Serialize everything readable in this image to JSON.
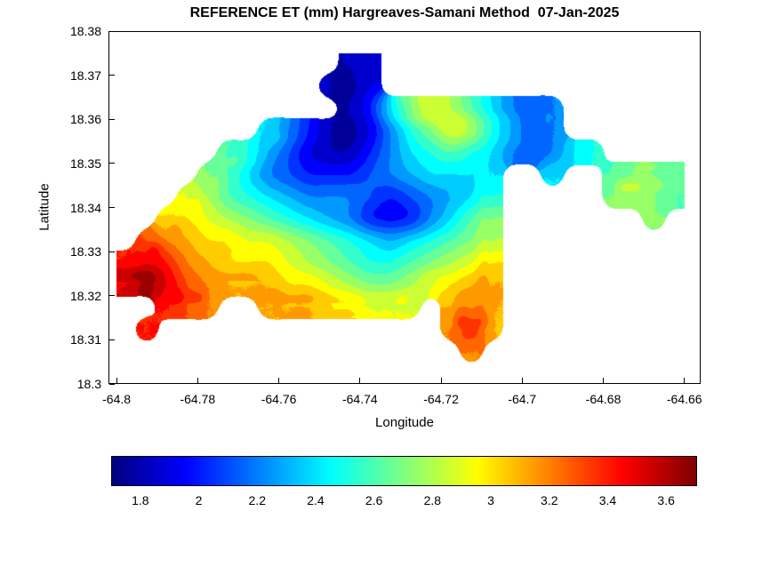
{
  "title": "REFERENCE ET (mm) Hargreaves-Samani Method  07-Jan-2025",
  "chart_data": {
    "type": "heatmap",
    "subtype": "filled-contour-map",
    "title": "REFERENCE ET (mm) Hargreaves-Samani Method  07-Jan-2025",
    "date": "07-Jan-2025",
    "method": "Hargreaves-Samani",
    "units": "mm",
    "xlabel": "Longitude",
    "ylabel": "Latitude",
    "xlim": [
      -64.802,
      -64.656
    ],
    "ylim": [
      18.3,
      18.38
    ],
    "x_ticks": {
      "values": [
        -64.8,
        -64.78,
        -64.76,
        -64.74,
        -64.72,
        -64.7,
        -64.68,
        -64.66
      ],
      "labels": [
        "-64.8",
        "-64.78",
        "-64.76",
        "-64.74",
        "-64.72",
        "-64.7",
        "-64.68",
        "-64.66"
      ]
    },
    "y_ticks": {
      "values": [
        18.3,
        18.31,
        18.32,
        18.33,
        18.34,
        18.35,
        18.36,
        18.37,
        18.38
      ],
      "labels": [
        "18.3",
        "18.31",
        "18.32",
        "18.33",
        "18.34",
        "18.35",
        "18.36",
        "18.37",
        "18.38"
      ]
    },
    "colormap": "jet",
    "value_range": [
      1.7,
      3.7
    ],
    "contour_interval": 0.1,
    "colorbar": {
      "orientation": "horizontal",
      "values": [
        1.8,
        2,
        2.2,
        2.4,
        2.6,
        2.8,
        3,
        3.2,
        3.4,
        3.6
      ],
      "labels": [
        "1.8",
        "2",
        "2.2",
        "2.4",
        "2.6",
        "2.8",
        "3",
        "3.2",
        "3.4",
        "3.6"
      ]
    },
    "grid": {
      "comment": "Reference ET (mm) sampled on lon/lat grid; null = water (outside island)",
      "lon_start": -64.7975,
      "lon_step": 0.005,
      "lat_start": 18.3725,
      "lat_step": -0.005,
      "values": [
        [
          null,
          null,
          null,
          null,
          null,
          null,
          null,
          null,
          null,
          null,
          null,
          1.8,
          1.9,
          null,
          null,
          null,
          null,
          null,
          null,
          null,
          null,
          null,
          null,
          null,
          null,
          null,
          null,
          null
        ],
        [
          null,
          null,
          null,
          null,
          null,
          null,
          null,
          null,
          null,
          null,
          1.8,
          1.75,
          1.9,
          null,
          null,
          null,
          null,
          null,
          null,
          null,
          null,
          null,
          null,
          null,
          null,
          null,
          null,
          null
        ],
        [
          null,
          null,
          null,
          null,
          null,
          null,
          null,
          null,
          null,
          null,
          null,
          1.8,
          2.0,
          2.4,
          2.7,
          2.9,
          2.8,
          2.6,
          2.4,
          2.2,
          2.1,
          2.2,
          null,
          null,
          null,
          null,
          null,
          null
        ],
        [
          null,
          null,
          null,
          null,
          null,
          null,
          null,
          2.4,
          2.2,
          2.0,
          1.8,
          1.75,
          1.9,
          2.2,
          2.5,
          2.7,
          2.9,
          2.8,
          2.5,
          2.3,
          2.1,
          2.2,
          null,
          null,
          null,
          null,
          null,
          null
        ],
        [
          null,
          null,
          null,
          null,
          null,
          2.6,
          2.5,
          2.3,
          2.1,
          1.9,
          1.8,
          1.8,
          2.0,
          2.2,
          2.4,
          2.5,
          2.6,
          2.5,
          2.4,
          2.2,
          2.1,
          2.2,
          2.4,
          2.5,
          null,
          null,
          null,
          null
        ],
        [
          null,
          null,
          null,
          null,
          2.7,
          2.6,
          2.4,
          2.2,
          2.1,
          2.0,
          2.0,
          2.0,
          2.1,
          2.2,
          2.3,
          2.4,
          2.4,
          2.4,
          2.4,
          null,
          null,
          2.4,
          null,
          null,
          2.6,
          2.7,
          2.7,
          2.6
        ],
        [
          null,
          null,
          null,
          2.9,
          2.8,
          2.6,
          2.5,
          2.4,
          2.3,
          2.2,
          2.2,
          2.2,
          2.1,
          2.0,
          2.1,
          2.2,
          2.3,
          2.4,
          2.5,
          null,
          null,
          null,
          null,
          null,
          2.7,
          2.8,
          2.7,
          2.6
        ],
        [
          null,
          null,
          3.0,
          3.0,
          2.9,
          2.8,
          2.7,
          2.6,
          2.5,
          2.4,
          2.3,
          2.2,
          2.0,
          1.95,
          2.0,
          2.2,
          2.4,
          2.6,
          2.7,
          null,
          null,
          null,
          null,
          null,
          null,
          null,
          2.7,
          null
        ],
        [
          null,
          3.3,
          3.2,
          3.1,
          3.0,
          3.0,
          2.9,
          2.9,
          2.8,
          2.7,
          2.6,
          2.5,
          2.4,
          2.3,
          2.4,
          2.5,
          2.6,
          2.7,
          2.8,
          null,
          null,
          null,
          null,
          null,
          null,
          null,
          null,
          null
        ],
        [
          3.4,
          3.5,
          3.4,
          3.2,
          3.1,
          3.0,
          3.0,
          3.0,
          2.9,
          2.8,
          2.7,
          2.6,
          2.5,
          2.5,
          2.6,
          2.7,
          2.8,
          2.9,
          3.0,
          null,
          null,
          null,
          null,
          null,
          null,
          null,
          null,
          null
        ],
        [
          3.5,
          3.65,
          3.5,
          3.3,
          3.2,
          3.1,
          3.1,
          3.1,
          3.0,
          3.0,
          2.9,
          2.8,
          2.7,
          2.7,
          2.8,
          2.9,
          3.0,
          3.1,
          3.1,
          null,
          null,
          null,
          null,
          null,
          null,
          null,
          null,
          null
        ],
        [
          null,
          null,
          3.4,
          3.3,
          3.2,
          null,
          null,
          3.1,
          3.1,
          3.1,
          3.0,
          3.0,
          2.9,
          2.9,
          2.9,
          null,
          3.1,
          3.2,
          3.1,
          null,
          null,
          null,
          null,
          null,
          null,
          null,
          null,
          null
        ],
        [
          null,
          3.4,
          null,
          null,
          null,
          null,
          null,
          null,
          null,
          null,
          null,
          null,
          null,
          null,
          null,
          null,
          3.2,
          3.4,
          3.1,
          null,
          null,
          null,
          null,
          null,
          null,
          null,
          null,
          null
        ],
        [
          null,
          null,
          null,
          null,
          null,
          null,
          null,
          null,
          null,
          null,
          null,
          null,
          null,
          null,
          null,
          null,
          null,
          3.2,
          null,
          null,
          null,
          null,
          null,
          null,
          null,
          null,
          null,
          null
        ],
        [
          null,
          null,
          null,
          null,
          null,
          null,
          null,
          null,
          null,
          null,
          null,
          null,
          null,
          null,
          null,
          null,
          null,
          null,
          null,
          null,
          null,
          null,
          null,
          null,
          null,
          null,
          null,
          null
        ]
      ]
    }
  }
}
